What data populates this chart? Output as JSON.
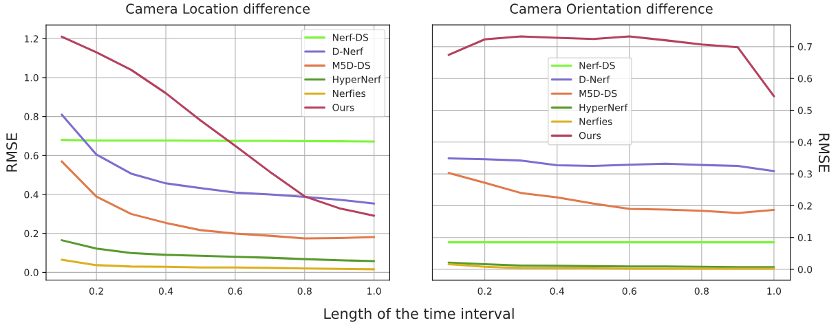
{
  "chart_data": [
    {
      "type": "line",
      "title": "Camera Location difference",
      "ylabel": "RMSE",
      "xlabel": "Length of the time interval",
      "x": [
        0.1,
        0.2,
        0.3,
        0.4,
        0.5,
        0.6,
        0.7,
        0.8,
        0.9,
        1.0
      ],
      "series": [
        {
          "name": "Nerf-DS",
          "color": "#7cf53a",
          "values": [
            0.68,
            0.677,
            0.677,
            0.677,
            0.676,
            0.675,
            0.675,
            0.674,
            0.673,
            0.672
          ]
        },
        {
          "name": "D-Nerf",
          "color": "#7b6fd0",
          "values": [
            0.81,
            0.605,
            0.507,
            0.457,
            0.433,
            0.41,
            0.4,
            0.388,
            0.373,
            0.353
          ]
        },
        {
          "name": "M5D-DS",
          "color": "#e07a4b",
          "values": [
            0.57,
            0.389,
            0.3,
            0.254,
            0.217,
            0.199,
            0.188,
            0.174,
            0.176,
            0.181
          ]
        },
        {
          "name": "HyperNerf",
          "color": "#5a9a2e",
          "values": [
            0.165,
            0.122,
            0.099,
            0.09,
            0.085,
            0.08,
            0.075,
            0.068,
            0.062,
            0.058
          ]
        },
        {
          "name": "Nerfies",
          "color": "#ddb020",
          "values": [
            0.065,
            0.037,
            0.03,
            0.029,
            0.025,
            0.025,
            0.023,
            0.02,
            0.018,
            0.016
          ]
        },
        {
          "name": "Ours",
          "color": "#b5415f",
          "values": [
            1.21,
            1.13,
            1.04,
            0.92,
            0.78,
            0.65,
            0.516,
            0.39,
            0.329,
            0.291
          ]
        }
      ],
      "xlim": [
        0.055,
        1.045
      ],
      "ylim": [
        -0.04,
        1.27
      ],
      "xticks": [
        {
          "value": 0.2,
          "label": "0.2"
        },
        {
          "value": 0.4,
          "label": "0.4"
        },
        {
          "value": 0.6,
          "label": "0.6"
        },
        {
          "value": 0.8,
          "label": "0.8"
        },
        {
          "value": 1.0,
          "label": "1.0"
        }
      ],
      "yticks": [
        {
          "value": 0,
          "label": "0.0"
        },
        {
          "value": 0.2,
          "label": "0.2"
        },
        {
          "value": 0.4,
          "label": "0.4"
        },
        {
          "value": 0.6,
          "label": "0.6"
        },
        {
          "value": 0.8,
          "label": "0.8"
        },
        {
          "value": 1.0,
          "label": "1.0"
        },
        {
          "value": 1.2,
          "label": "1.2"
        }
      ],
      "grid": true,
      "legend": "top right"
    },
    {
      "type": "line",
      "title": "Camera Orientation difference",
      "y2label": "RMSE",
      "x": [
        0.1,
        0.2,
        0.3,
        0.4,
        0.5,
        0.6,
        0.7,
        0.8,
        0.9,
        1.0
      ],
      "series": [
        {
          "name": "Nerf-DS",
          "color": "#7cf53a",
          "axis": "y2",
          "values": [
            0.085,
            0.085,
            0.085,
            0.085,
            0.085,
            0.085,
            0.085,
            0.085,
            0.085,
            0.085
          ]
        },
        {
          "name": "D-Nerf",
          "color": "#7b6fd0",
          "axis": "y2",
          "values": [
            0.349,
            0.346,
            0.342,
            0.327,
            0.325,
            0.329,
            0.332,
            0.328,
            0.325,
            0.309
          ]
        },
        {
          "name": "M5D-DS",
          "color": "#e07a4b",
          "axis": "y2",
          "values": [
            0.303,
            0.272,
            0.24,
            0.226,
            0.207,
            0.19,
            0.188,
            0.184,
            0.177,
            0.187
          ]
        },
        {
          "name": "HyperNerf",
          "color": "#5a9a2e",
          "axis": "y2",
          "values": [
            0.021,
            0.016,
            0.012,
            0.011,
            0.01,
            0.009,
            0.009,
            0.008,
            0.007,
            0.007
          ]
        },
        {
          "name": "Nerfies",
          "color": "#ddb020",
          "axis": "y2",
          "values": [
            0.016,
            0.008,
            0.004,
            0.003,
            0.003,
            0.002,
            0.002,
            0.002,
            0.002,
            0.002
          ]
        },
        {
          "name": "Ours",
          "color": "#b5415f",
          "axis": "y2",
          "values": [
            0.674,
            0.723,
            0.732,
            0.728,
            0.724,
            0.732,
            0.72,
            0.707,
            0.698,
            0.544
          ]
        }
      ],
      "xlim": [
        0.055,
        1.045
      ],
      "y2lim": [
        -0.034,
        0.768
      ],
      "xticks": [
        {
          "value": 0.2,
          "label": "0.2"
        },
        {
          "value": 0.4,
          "label": "0.4"
        },
        {
          "value": 0.6,
          "label": "0.6"
        },
        {
          "value": 0.8,
          "label": "0.8"
        },
        {
          "value": 1.0,
          "label": "1.0"
        }
      ],
      "y2ticks": [
        {
          "value": 0,
          "label": "0.0"
        },
        {
          "value": 0.1,
          "label": "0.1"
        },
        {
          "value": 0.2,
          "label": "0.2"
        },
        {
          "value": 0.3,
          "label": "0.3"
        },
        {
          "value": 0.4,
          "label": "0.4"
        },
        {
          "value": 0.5,
          "label": "0.5"
        },
        {
          "value": 0.6,
          "label": "0.6"
        },
        {
          "value": 0.7,
          "label": "0.7"
        }
      ],
      "grid": true,
      "legend": "top"
    }
  ]
}
